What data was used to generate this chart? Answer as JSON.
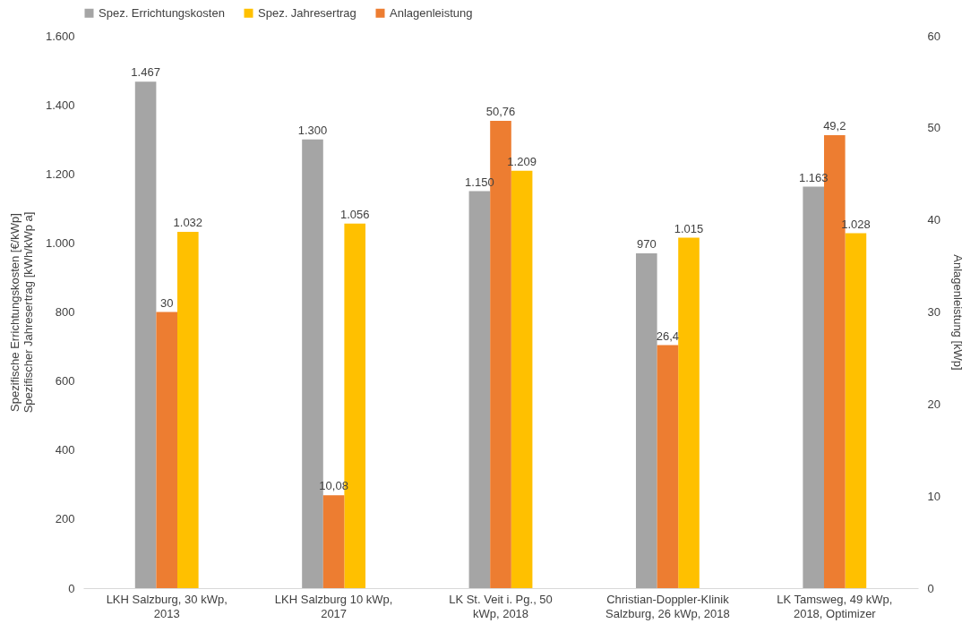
{
  "chart_data": {
    "type": "bar",
    "categories": [
      "LKH Salzburg, 30 kWp,\n2013",
      "LKH Salzburg 10 kWp,\n2017",
      "LK St. Veit i. Pg., 50\nkWp, 2018",
      "Christian-Doppler-Klinik\nSalzburg, 26 kWp, 2018",
      "LK Tamsweg, 49 kWp,\n2018, Optimizer"
    ],
    "ylabel": "Spezifische Errichtungskosten [€/kWp]\nSpezifischer Jahresertrag [kWh/kWp a]",
    "y2label": "Anlagenleistung [kWp]",
    "ylim": [
      0,
      1600
    ],
    "yticks": [
      0,
      200,
      400,
      600,
      800,
      {
        "value": 1000,
        "label": "1.000"
      },
      {
        "value": 1200,
        "label": "1.200"
      },
      {
        "value": 1400,
        "label": "1.400"
      },
      {
        "value": 1600,
        "label": "1.600"
      }
    ],
    "y2lim": [
      0,
      60
    ],
    "y2ticks": [
      0,
      10,
      20,
      30,
      40,
      50,
      60
    ],
    "legend": "top",
    "grid": false,
    "series": [
      {
        "name": "Spez. Errichtungskosten",
        "color": "#a5a5a5",
        "values": [
          1467,
          1300,
          1150,
          970,
          1163
        ],
        "value_labels": [
          "1.467",
          "1.300",
          "1.150",
          "970",
          "1.163"
        ]
      },
      {
        "name": "Spez. Jahresertrag",
        "color": "#ffc000",
        "values": [
          1032,
          1056,
          1209,
          1015,
          1028
        ],
        "value_labels": [
          "1.032",
          "1.056",
          "1.209",
          "1.015",
          "1.028"
        ]
      },
      {
        "name": "Anlagenleistung",
        "color": "#ed7d31",
        "axis": "y2",
        "values": [
          30,
          10.08,
          50.76,
          26.4,
          49.2
        ],
        "value_labels": [
          "30",
          "10,08",
          "50,76",
          "26,4",
          "49,2"
        ]
      }
    ]
  }
}
